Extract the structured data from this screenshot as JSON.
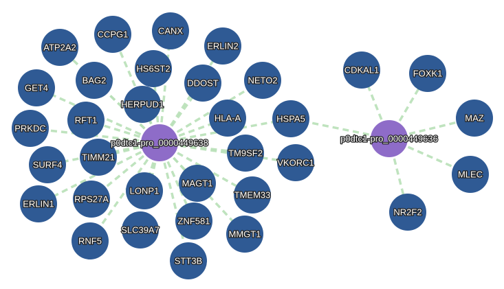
{
  "colors": {
    "protein_node": "#2f5a94",
    "hub_node": "#8e6cc8",
    "edge": "#b9e0b8"
  },
  "graph": {
    "hubs": [
      {
        "id": "hub1",
        "label": "p0dtc1-pro_0000449638"
      },
      {
        "id": "hub2",
        "label": "p0dtc1-pro_0000449636"
      }
    ],
    "proteins": [
      {
        "id": "CCPG1",
        "label": "CCPG1"
      },
      {
        "id": "CANX",
        "label": "CANX"
      },
      {
        "id": "ATP2A2",
        "label": "ATP2A2"
      },
      {
        "id": "ERLIN2",
        "label": "ERLIN2"
      },
      {
        "id": "HS6ST2",
        "label": "HS6ST2"
      },
      {
        "id": "BAG2",
        "label": "BAG2"
      },
      {
        "id": "DDOST",
        "label": "DDOST"
      },
      {
        "id": "NETO2",
        "label": "NETO2"
      },
      {
        "id": "GET4",
        "label": "GET4"
      },
      {
        "id": "HERPUD1",
        "label": "HERPUD1"
      },
      {
        "id": "RFT1",
        "label": "RFT1"
      },
      {
        "id": "HLA-A",
        "label": "HLA-A"
      },
      {
        "id": "HSPA5",
        "label": "HSPA5"
      },
      {
        "id": "PRKDC",
        "label": "PRKDC"
      },
      {
        "id": "TM9SF2",
        "label": "TM9SF2"
      },
      {
        "id": "TIMM21",
        "label": "TIMM21"
      },
      {
        "id": "VKORC1",
        "label": "VKORC1"
      },
      {
        "id": "SURF4",
        "label": "SURF4"
      },
      {
        "id": "LONP1",
        "label": "LONP1"
      },
      {
        "id": "MAGT1",
        "label": "MAGT1"
      },
      {
        "id": "RPS27A",
        "label": "RPS27A"
      },
      {
        "id": "TMEM33",
        "label": "TMEM33"
      },
      {
        "id": "ERLIN1",
        "label": "ERLIN1"
      },
      {
        "id": "ZNF581",
        "label": "ZNF581"
      },
      {
        "id": "SLC39A7",
        "label": "SLC39A7"
      },
      {
        "id": "MMGT1",
        "label": "MMGT1"
      },
      {
        "id": "RNF5",
        "label": "RNF5"
      },
      {
        "id": "STT3B",
        "label": "STT3B"
      },
      {
        "id": "CDKAL1",
        "label": "CDKAL1"
      },
      {
        "id": "FOXK1",
        "label": "FOXK1"
      },
      {
        "id": "MAZ",
        "label": "MAZ"
      },
      {
        "id": "MLEC",
        "label": "MLEC"
      },
      {
        "id": "NR2F2",
        "label": "NR2F2"
      }
    ],
    "edges": [
      [
        "hub1",
        "CCPG1"
      ],
      [
        "hub1",
        "CANX"
      ],
      [
        "hub1",
        "ATP2A2"
      ],
      [
        "hub1",
        "ERLIN2"
      ],
      [
        "hub1",
        "HS6ST2"
      ],
      [
        "hub1",
        "BAG2"
      ],
      [
        "hub1",
        "DDOST"
      ],
      [
        "hub1",
        "NETO2"
      ],
      [
        "hub1",
        "GET4"
      ],
      [
        "hub1",
        "HERPUD1"
      ],
      [
        "hub1",
        "RFT1"
      ],
      [
        "hub1",
        "HLA-A"
      ],
      [
        "hub1",
        "HSPA5"
      ],
      [
        "hub1",
        "PRKDC"
      ],
      [
        "hub1",
        "TM9SF2"
      ],
      [
        "hub1",
        "TIMM21"
      ],
      [
        "hub1",
        "VKORC1"
      ],
      [
        "hub1",
        "SURF4"
      ],
      [
        "hub1",
        "LONP1"
      ],
      [
        "hub1",
        "MAGT1"
      ],
      [
        "hub1",
        "RPS27A"
      ],
      [
        "hub1",
        "TMEM33"
      ],
      [
        "hub1",
        "ERLIN1"
      ],
      [
        "hub1",
        "ZNF581"
      ],
      [
        "hub1",
        "SLC39A7"
      ],
      [
        "hub1",
        "MMGT1"
      ],
      [
        "hub1",
        "RNF5"
      ],
      [
        "hub1",
        "STT3B"
      ],
      [
        "hub2",
        "HSPA5"
      ],
      [
        "hub2",
        "CDKAL1"
      ],
      [
        "hub2",
        "FOXK1"
      ],
      [
        "hub2",
        "MAZ"
      ],
      [
        "hub2",
        "MLEC"
      ],
      [
        "hub2",
        "NR2F2"
      ]
    ]
  }
}
